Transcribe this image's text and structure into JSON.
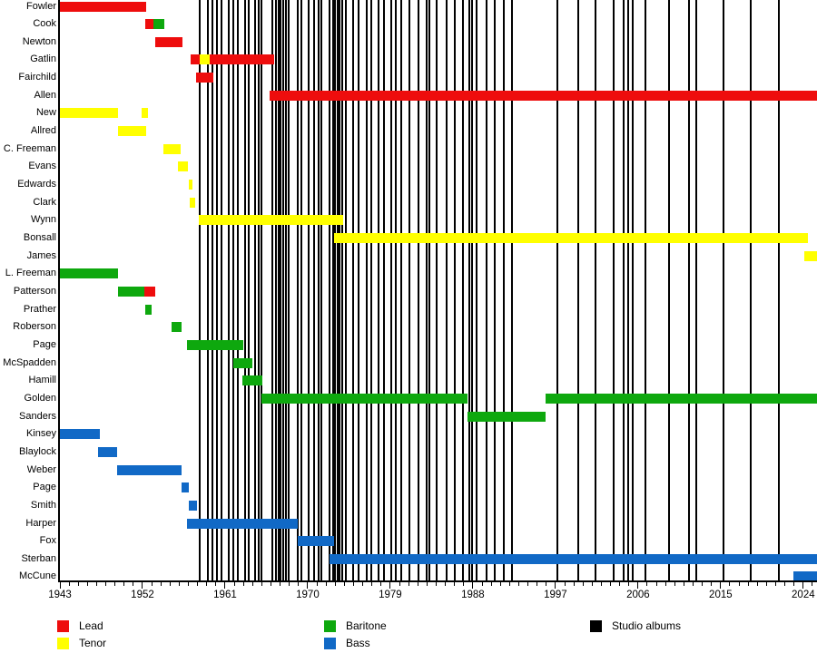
{
  "chart_data": {
    "type": "timeline-gantt",
    "title": "",
    "x_axis": {
      "min": 1943,
      "max": 2025.5,
      "minor_tick_interval": 1,
      "label_years": [
        1943,
        1952,
        1961,
        1970,
        1979,
        1988,
        1997,
        2006,
        2015,
        2024
      ]
    },
    "roles": {
      "lead": "#EE0D0D",
      "tenor": "#FFFF00",
      "baritone": "#0EA80E",
      "bass": "#1169C6",
      "albums": "#000000"
    },
    "rows": [
      {
        "name": "Fowler",
        "segments": [
          {
            "role": "lead",
            "start": 1943,
            "end": 1952.4
          }
        ]
      },
      {
        "name": "Cook",
        "segments": [
          {
            "role": "lead",
            "start": 1952.3,
            "end": 1953.2
          },
          {
            "role": "baritone",
            "start": 1953.2,
            "end": 1954.4
          }
        ]
      },
      {
        "name": "Newton",
        "segments": [
          {
            "role": "lead",
            "start": 1953.4,
            "end": 1956.4
          }
        ]
      },
      {
        "name": "Gatlin",
        "segments": [
          {
            "role": "lead",
            "start": 1957.2,
            "end": 1958.2
          },
          {
            "role": "tenor",
            "start": 1958.2,
            "end": 1959.3
          },
          {
            "role": "lead",
            "start": 1959.3,
            "end": 1966.3
          }
        ]
      },
      {
        "name": "Fairchild",
        "segments": [
          {
            "role": "lead",
            "start": 1957.8,
            "end": 1959.7
          }
        ]
      },
      {
        "name": "Allen",
        "segments": [
          {
            "role": "lead",
            "start": 1965.9,
            "end": 2025.5
          }
        ]
      },
      {
        "name": "New",
        "segments": [
          {
            "role": "tenor",
            "start": 1943,
            "end": 1949.3
          },
          {
            "role": "tenor",
            "start": 1951.9,
            "end": 1952.6
          }
        ]
      },
      {
        "name": "Allred",
        "segments": [
          {
            "role": "tenor",
            "start": 1949.3,
            "end": 1952.4
          }
        ]
      },
      {
        "name": "C. Freeman",
        "segments": [
          {
            "role": "tenor",
            "start": 1954.3,
            "end": 1956.2
          }
        ]
      },
      {
        "name": "Evans",
        "segments": [
          {
            "role": "tenor",
            "start": 1955.9,
            "end": 1956.9
          }
        ]
      },
      {
        "name": "Edwards",
        "segments": [
          {
            "role": "tenor",
            "start": 1957.0,
            "end": 1957.4
          }
        ]
      },
      {
        "name": "Clark",
        "segments": [
          {
            "role": "tenor",
            "start": 1957.1,
            "end": 1957.7
          }
        ]
      },
      {
        "name": "Wynn",
        "segments": [
          {
            "role": "tenor",
            "start": 1958.1,
            "end": 1973.9
          }
        ]
      },
      {
        "name": "Bonsall",
        "segments": [
          {
            "role": "tenor",
            "start": 1972.9,
            "end": 2024.5
          }
        ]
      },
      {
        "name": "James",
        "segments": [
          {
            "role": "tenor",
            "start": 2024.1,
            "end": 2025.5
          }
        ]
      },
      {
        "name": "L. Freeman",
        "segments": [
          {
            "role": "baritone",
            "start": 1943,
            "end": 1949.3
          }
        ]
      },
      {
        "name": "Patterson",
        "segments": [
          {
            "role": "baritone",
            "start": 1949.3,
            "end": 1952.2
          },
          {
            "role": "lead",
            "start": 1952.2,
            "end": 1953.4
          }
        ]
      },
      {
        "name": "Prather",
        "segments": [
          {
            "role": "baritone",
            "start": 1952.3,
            "end": 1953.0
          }
        ]
      },
      {
        "name": "Roberson",
        "segments": [
          {
            "role": "baritone",
            "start": 1955.2,
            "end": 1956.3
          }
        ]
      },
      {
        "name": "Page",
        "segments": [
          {
            "role": "baritone",
            "start": 1956.8,
            "end": 1963.0
          }
        ]
      },
      {
        "name": "McSpadden",
        "segments": [
          {
            "role": "baritone",
            "start": 1961.9,
            "end": 1964.0
          }
        ]
      },
      {
        "name": "Hamill",
        "segments": [
          {
            "role": "baritone",
            "start": 1962.9,
            "end": 1965.1
          }
        ]
      },
      {
        "name": "Golden",
        "segments": [
          {
            "role": "baritone",
            "start": 1965.0,
            "end": 1987.4
          },
          {
            "role": "baritone",
            "start": 1995.9,
            "end": 2025.5
          }
        ]
      },
      {
        "name": "Sanders",
        "segments": [
          {
            "role": "baritone",
            "start": 1987.4,
            "end": 1995.9
          }
        ]
      },
      {
        "name": "Kinsey",
        "segments": [
          {
            "role": "bass",
            "start": 1943,
            "end": 1947.4
          }
        ]
      },
      {
        "name": "Blaylock",
        "segments": [
          {
            "role": "bass",
            "start": 1947.2,
            "end": 1949.2
          }
        ]
      },
      {
        "name": "Weber",
        "segments": [
          {
            "role": "bass",
            "start": 1949.2,
            "end": 1956.3
          }
        ]
      },
      {
        "name": "Page",
        "segments": [
          {
            "role": "bass",
            "start": 1956.3,
            "end": 1957.0
          }
        ]
      },
      {
        "name": "Smith",
        "segments": [
          {
            "role": "bass",
            "start": 1957.0,
            "end": 1957.9
          }
        ]
      },
      {
        "name": "Harper",
        "segments": [
          {
            "role": "bass",
            "start": 1956.8,
            "end": 1968.9
          }
        ]
      },
      {
        "name": "Fox",
        "segments": [
          {
            "role": "bass",
            "start": 1968.9,
            "end": 1972.9
          }
        ]
      },
      {
        "name": "Sterban",
        "segments": [
          {
            "role": "bass",
            "start": 1972.4,
            "end": 2025.5
          }
        ]
      },
      {
        "name": "McCune",
        "segments": [
          {
            "role": "bass",
            "start": 2022.9,
            "end": 2025.5
          }
        ]
      }
    ],
    "studio_album_years": [
      1958.2,
      1959.1,
      1959.6,
      1960.1,
      1960.6,
      1961.4,
      1961.9,
      1962.4,
      1963.2,
      1963.6,
      1964.3,
      1964.7,
      1965.0,
      1966.1,
      1966.5,
      1966.8,
      1967.0,
      1967.3,
      1967.6,
      1967.9,
      1968.9,
      1969.3,
      1970.1,
      1970.7,
      1971.2,
      1971.5,
      1972.4,
      1972.8,
      1973.0,
      1973.3,
      1973.5,
      1973.8,
      1974.2,
      1975.0,
      1975.5,
      1976.4,
      1976.9,
      1977.7,
      1978.3,
      1979.1,
      1979.6,
      1980.2,
      1981.1,
      1982.1,
      1983.0,
      1983.3,
      1984.1,
      1985.1,
      1986.0,
      1986.9,
      1987.6,
      1987.9,
      1988.4,
      1989.5,
      1990.4,
      1991.4,
      1992.3,
      1997.2,
      1999.5,
      2001.4,
      2003.3,
      2004.4,
      2004.9,
      2005.4,
      2006.8,
      2009.4,
      2011.6,
      2012.3,
      2015.3,
      2018.3,
      2021.3
    ],
    "legend": [
      {
        "label": "Lead",
        "role": "lead"
      },
      {
        "label": "Tenor",
        "role": "tenor"
      },
      {
        "label": "Baritone",
        "role": "baritone"
      },
      {
        "label": "Bass",
        "role": "bass"
      },
      {
        "label": "Studio albums",
        "role": "albums"
      }
    ]
  }
}
